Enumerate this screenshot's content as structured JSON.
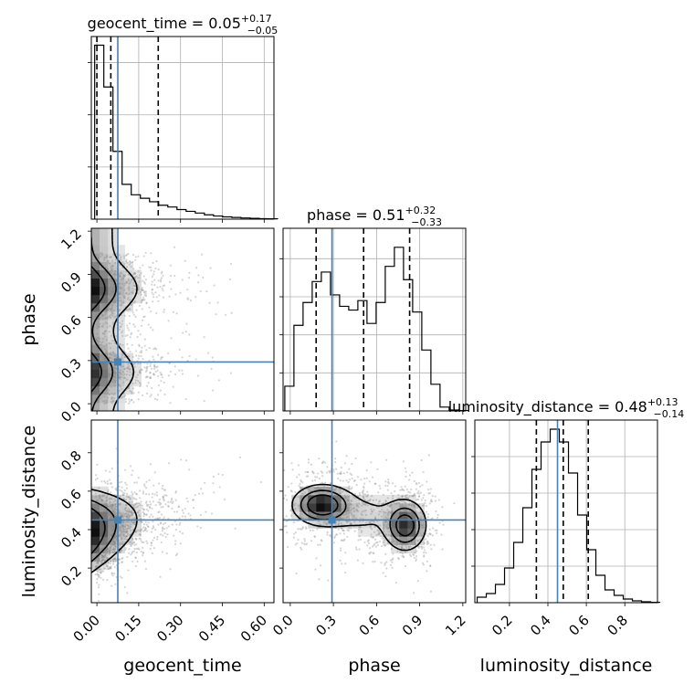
{
  "chart_data": {
    "type": "corner",
    "parameters": [
      {
        "name": "geocent_time",
        "range": [
          -0.02,
          0.635
        ],
        "ticks": [
          0.0,
          0.15,
          0.3,
          0.45,
          0.6
        ],
        "tick_labels": [
          "0.00",
          "0.15",
          "0.30",
          "0.45",
          "0.60"
        ],
        "truth": 0.075,
        "quantiles": [
          0.0,
          0.05,
          0.22
        ],
        "title_main": "geocent_time = 0.05",
        "title_plus": "+0.17",
        "title_minus": "−0.05",
        "hist_bin_width": 0.0328,
        "hist_counts": [
          100,
          76,
          39,
          20,
          14,
          12,
          10,
          8,
          7,
          5.5,
          4.5,
          3.5,
          2.5,
          1.8,
          1.3,
          1.0,
          0.7,
          0.5,
          0.3,
          0.2
        ]
      },
      {
        "name": "phase",
        "range": [
          -0.05,
          1.22
        ],
        "ticks": [
          0.0,
          0.3,
          0.6,
          0.9,
          1.2
        ],
        "tick_labels": [
          "0.0",
          "0.3",
          "0.6",
          "0.9",
          "1.2"
        ],
        "truth": 0.29,
        "quantiles": [
          0.18,
          0.51,
          0.83
        ],
        "title_main": "phase = 0.51",
        "title_plus": "+0.32",
        "title_minus": "−0.33",
        "hist_bin_width": 0.0635,
        "hist_counts": [
          13,
          45,
          57,
          68,
          73,
          61,
          55,
          53,
          58,
          46,
          57,
          76,
          86,
          69,
          52,
          32,
          14,
          2,
          0.5,
          0.2
        ]
      },
      {
        "name": "luminosity_distance",
        "range": [
          0.02,
          0.97
        ],
        "ticks": [
          0.2,
          0.4,
          0.6,
          0.8
        ],
        "tick_labels": [
          "0.2",
          "0.4",
          "0.6",
          "0.8"
        ],
        "truth": 0.45,
        "quantiles": [
          0.34,
          0.48,
          0.61
        ],
        "title_main": "luminosity_distance = 0.48",
        "title_plus": "+0.13",
        "title_minus": "−0.14",
        "hist_bin_width": 0.0475,
        "hist_counts": [
          3,
          5,
          10,
          19,
          33,
          52,
          73,
          88,
          95,
          88,
          71,
          48,
          29,
          15,
          7,
          4,
          2,
          1,
          0.5,
          0.2
        ]
      }
    ],
    "hist_ticks": [
      {
        "values": [
          30,
          60,
          90
        ]
      },
      {
        "values": [
          20,
          40,
          60,
          80
        ]
      },
      {
        "values": [
          20,
          40,
          60,
          80
        ]
      }
    ],
    "hist_ymax": [
      105,
      96,
      100
    ],
    "axis_labels": {
      "x": [
        "geocent_time",
        "phase",
        "luminosity_distance"
      ],
      "y": [
        "phase",
        "luminosity_distance"
      ]
    }
  }
}
